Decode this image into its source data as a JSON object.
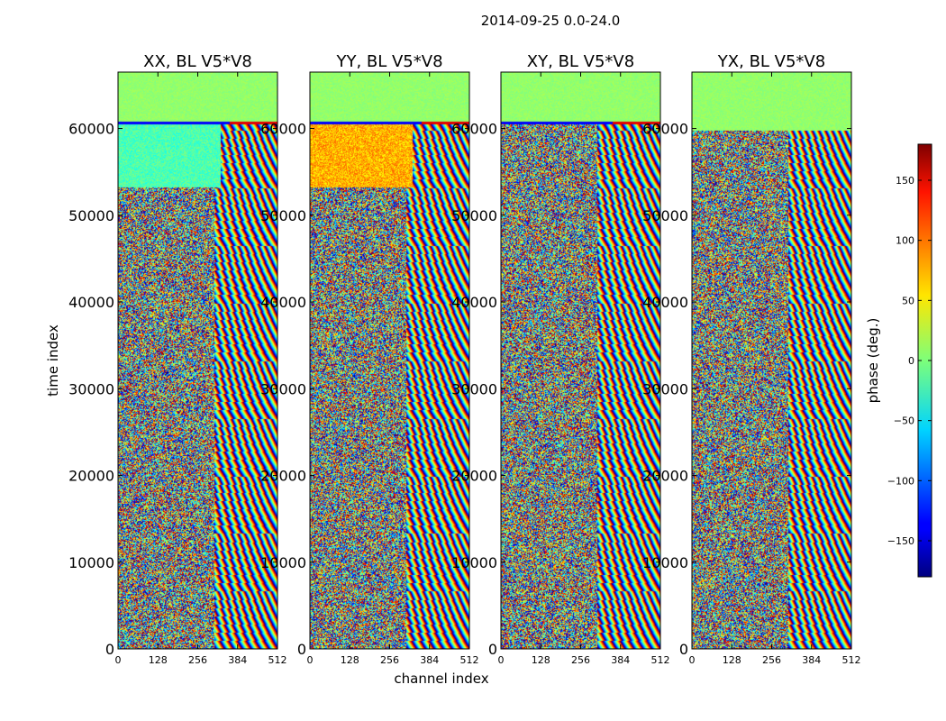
{
  "figure_title": "2014-09-25 0.0-24.0",
  "chart_data": {
    "type": "heatmap",
    "title": "2014-09-25 0.0-24.0",
    "xlabel": "channel index",
    "ylabel": "time index",
    "xlim": [
      0,
      512
    ],
    "ylim": [
      0,
      66500
    ],
    "x_ticks": [
      0,
      128,
      256,
      384,
      512
    ],
    "y_ticks": [
      0,
      10000,
      20000,
      30000,
      40000,
      50000,
      60000
    ],
    "colormap": "jet",
    "colorbar": {
      "label": "phase (deg.)",
      "range": [
        -180,
        180
      ],
      "ticks": [
        -150,
        -100,
        -50,
        0,
        50,
        100,
        150
      ],
      "tick_labels": [
        "−150",
        "−100",
        "−50",
        "0",
        "50",
        "100",
        "150"
      ]
    },
    "panels": [
      {
        "title": "XX, BL V5*V8",
        "polarization": "XX"
      },
      {
        "title": "YY, BL V5*V8",
        "polarization": "YY"
      },
      {
        "title": "XY, BL V5*V8",
        "polarization": "XY"
      },
      {
        "title": "YX, BL V5*V8",
        "polarization": "YX"
      }
    ]
  }
}
